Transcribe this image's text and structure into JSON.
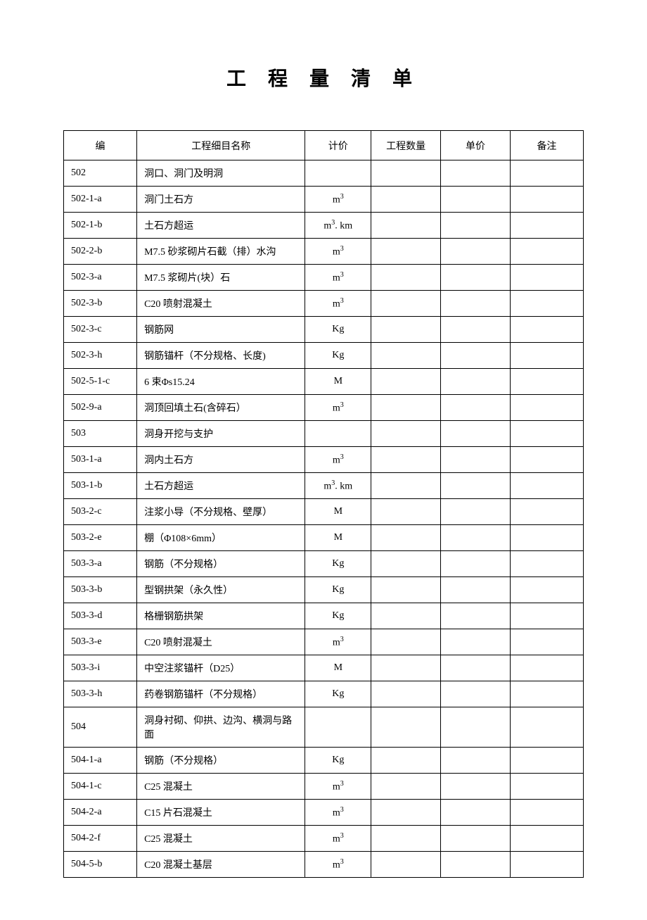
{
  "title": "工 程 量 清 单",
  "headers": {
    "code": "编",
    "name": "工程细目名称",
    "unit": "计价",
    "quantity": "工程数量",
    "price": "单价",
    "remark": "备注"
  },
  "column_widths": {
    "code": 100,
    "name": 230,
    "unit": 90,
    "quantity": 95,
    "price": 95,
    "remark": 100
  },
  "colors": {
    "background": "#ffffff",
    "text": "#000000",
    "border_solid": "#000000",
    "border_dashed": "#999999"
  },
  "typography": {
    "title_fontsize": 28,
    "title_letter_spacing": 12,
    "body_fontsize": 14,
    "font_family": "SimSun"
  },
  "rows": [
    {
      "code": "502",
      "name": "洞口、洞门及明洞",
      "unit": "",
      "quantity": "",
      "price": "",
      "remark": ""
    },
    {
      "code": "502-1-a",
      "name": "洞门土石方",
      "unit": "m³",
      "quantity": "",
      "price": "",
      "remark": ""
    },
    {
      "code": "502-1-b",
      "name": "土石方超运",
      "unit": "m³. km",
      "quantity": "",
      "price": "",
      "remark": ""
    },
    {
      "code": "502-2-b",
      "name": "M7.5 砂浆砌片石截（排）水沟",
      "unit": "m³",
      "quantity": "",
      "price": "",
      "remark": ""
    },
    {
      "code": "502-3-a",
      "name": "M7.5 浆砌片(块）石",
      "unit": "m³",
      "quantity": "",
      "price": "",
      "remark": ""
    },
    {
      "code": "502-3-b",
      "name": "C20 喷射混凝土",
      "unit": "m³",
      "quantity": "",
      "price": "",
      "remark": ""
    },
    {
      "code": "502-3-c",
      "name": "钢筋网",
      "unit": "Kg",
      "quantity": "",
      "price": "",
      "remark": ""
    },
    {
      "code": "502-3-h",
      "name": "钢筋锚杆（不分规格、长度)",
      "unit": "Kg",
      "quantity": "",
      "price": "",
      "remark": ""
    },
    {
      "code": "502-5-1-c",
      "name": "6 束Φs15.24",
      "unit": "M",
      "quantity": "",
      "price": "",
      "remark": ""
    },
    {
      "code": "502-9-a",
      "name": "洞顶回填土石(含碎石）",
      "unit": "m³",
      "quantity": "",
      "price": "",
      "remark": ""
    },
    {
      "code": "503",
      "name": "洞身开挖与支护",
      "unit": "",
      "quantity": "",
      "price": "",
      "remark": ""
    },
    {
      "code": "503-1-a",
      "name": "洞内土石方",
      "unit": "m³",
      "quantity": "",
      "price": "",
      "remark": ""
    },
    {
      "code": "503-1-b",
      "name": "土石方超运",
      "unit": "m³. km",
      "quantity": "",
      "price": "",
      "remark": ""
    },
    {
      "code": "503-2-c",
      "name": "注浆小导（不分规格、壁厚）",
      "unit": "M",
      "quantity": "",
      "price": "",
      "remark": ""
    },
    {
      "code": "503-2-e",
      "name": "棚（Φ108×6mm）",
      "unit": "M",
      "quantity": "",
      "price": "",
      "remark": ""
    },
    {
      "code": "503-3-a",
      "name": "钢筋（不分规格）",
      "unit": "Kg",
      "quantity": "",
      "price": "",
      "remark": ""
    },
    {
      "code": "503-3-b",
      "name": "型钢拱架（永久性）",
      "unit": "Kg",
      "quantity": "",
      "price": "",
      "remark": ""
    },
    {
      "code": "503-3-d",
      "name": "格栅钢筋拱架",
      "unit": "Kg",
      "quantity": "",
      "price": "",
      "remark": ""
    },
    {
      "code": "503-3-e",
      "name": "C20 喷射混凝土",
      "unit": "m³",
      "quantity": "",
      "price": "",
      "remark": ""
    },
    {
      "code": "503-3-i",
      "name": "中空注浆锚杆（D25）",
      "unit": "M",
      "quantity": "",
      "price": "",
      "remark": ""
    },
    {
      "code": "503-3-h",
      "name": "药卷钢筋锚杆（不分规格）",
      "unit": "Kg",
      "quantity": "",
      "price": "",
      "remark": ""
    },
    {
      "code": "504",
      "name": "洞身衬砌、仰拱、边沟、横洞与路面",
      "unit": "",
      "quantity": "",
      "price": "",
      "remark": ""
    },
    {
      "code": "504-1-a",
      "name": "钢筋（不分规格）",
      "unit": "Kg",
      "quantity": "",
      "price": "",
      "remark": ""
    },
    {
      "code": "504-1-c",
      "name": "C25 混凝土",
      "unit": "m³",
      "quantity": "",
      "price": "",
      "remark": ""
    },
    {
      "code": "504-2-a",
      "name": "C15 片石混凝土",
      "unit": "m³",
      "quantity": "",
      "price": "",
      "remark": ""
    },
    {
      "code": "504-2-f",
      "name": "C25 混凝土",
      "unit": "m³",
      "quantity": "",
      "price": "",
      "remark": ""
    },
    {
      "code": "504-5-b",
      "name": "C20 混凝土基层",
      "unit": "m³",
      "quantity": "",
      "price": "",
      "remark": ""
    }
  ]
}
